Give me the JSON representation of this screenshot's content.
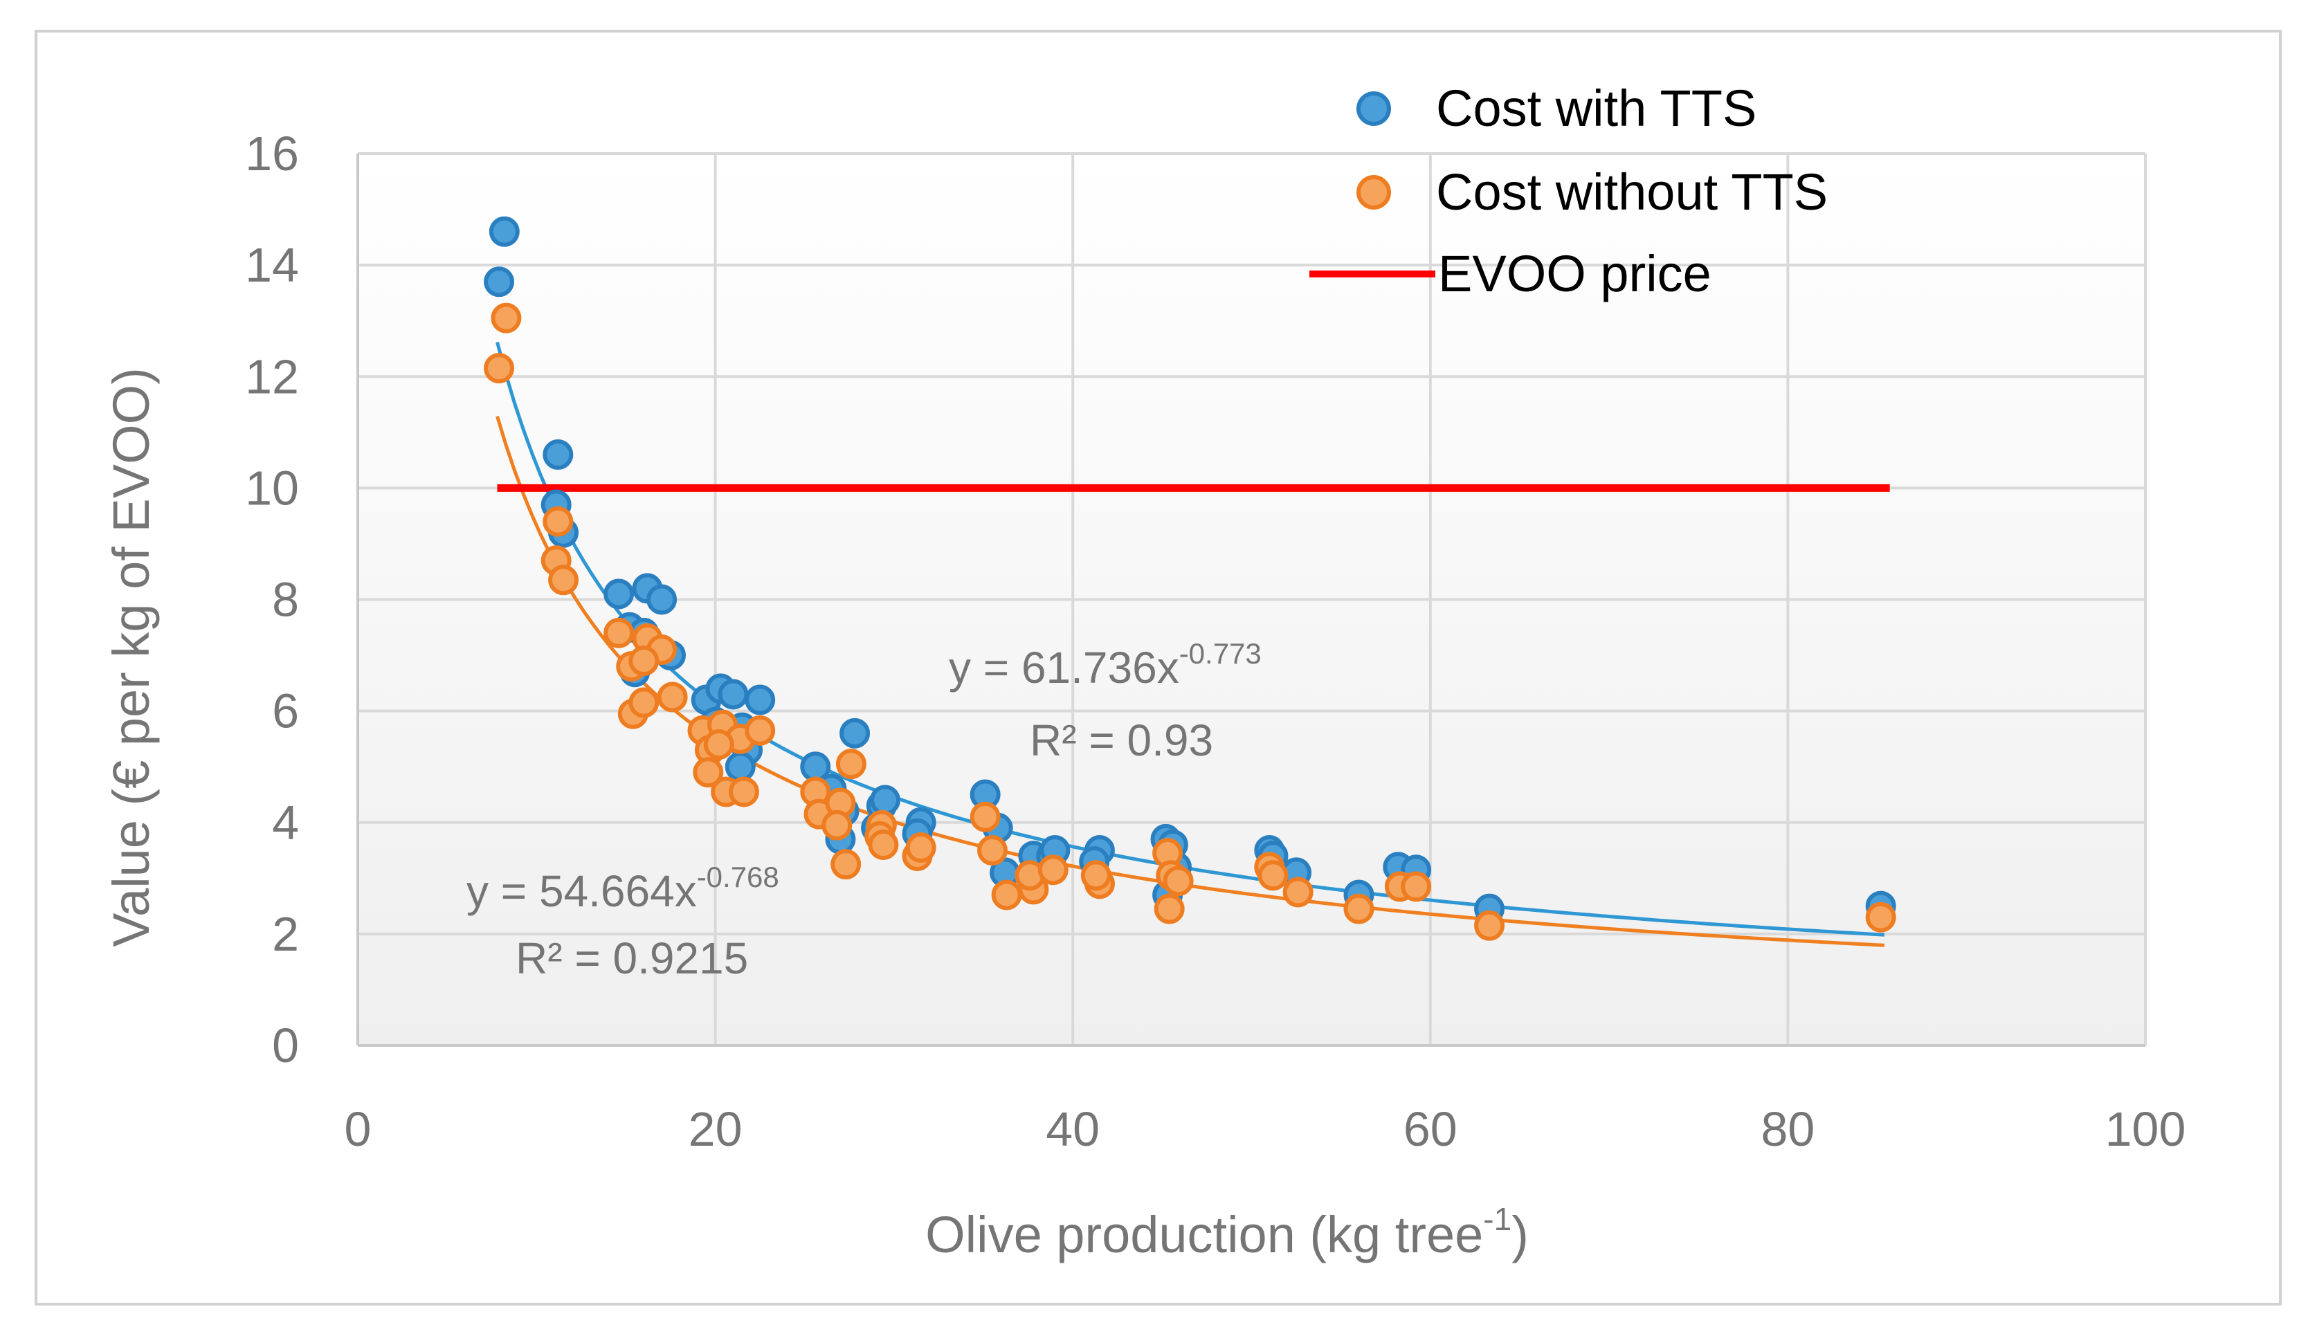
{
  "chart_data": {
    "type": "scatter",
    "title": "",
    "xlabel": "Olive production (kg tree",
    "xlabel_sup": "-1",
    "xlabel_suffix": ")",
    "ylabel": "Value (€ per kg of EVOO)",
    "xlim": [
      0,
      100
    ],
    "ylim": [
      0,
      16
    ],
    "xticks": [
      0,
      20,
      40,
      60,
      80,
      100
    ],
    "yticks": [
      0,
      2,
      4,
      6,
      8,
      10,
      12,
      14,
      16
    ],
    "grid": true,
    "legend_position": "top-right",
    "colors": {
      "with_tts": "#4a9fd8",
      "with_tts_edge": "#2a7fc0",
      "without_tts": "#f6a45c",
      "without_tts_edge": "#ee7d22",
      "trend_with": "#2e97d4",
      "trend_without": "#f07f20",
      "evoo": "#ff0000",
      "axis_text": "#757575",
      "grid": "#d9d9d9",
      "border": "#d0d0d0"
    },
    "series": [
      {
        "name": "Cost with TTS",
        "kind": "scatter",
        "points": [
          [
            8.2,
            14.6
          ],
          [
            7.9,
            13.7
          ],
          [
            11.2,
            10.6
          ],
          [
            11.1,
            9.7
          ],
          [
            11.5,
            9.2
          ],
          [
            14.6,
            8.1
          ],
          [
            16.2,
            8.2
          ],
          [
            17.0,
            8.0
          ],
          [
            15.2,
            7.5
          ],
          [
            16.0,
            7.4
          ],
          [
            17.5,
            7.0
          ],
          [
            15.5,
            6.7
          ],
          [
            19.5,
            6.2
          ],
          [
            20.3,
            6.4
          ],
          [
            21.0,
            6.3
          ],
          [
            22.5,
            6.2
          ],
          [
            20.0,
            5.8
          ],
          [
            21.5,
            5.7
          ],
          [
            21.8,
            5.3
          ],
          [
            21.4,
            5.0
          ],
          [
            25.6,
            5.0
          ],
          [
            26.5,
            4.6
          ],
          [
            27.8,
            5.6
          ],
          [
            27.2,
            4.2
          ],
          [
            29.3,
            4.3
          ],
          [
            29.5,
            4.4
          ],
          [
            29.0,
            3.9
          ],
          [
            31.5,
            4.0
          ],
          [
            31.3,
            3.8
          ],
          [
            27.0,
            3.7
          ],
          [
            35.1,
            4.5
          ],
          [
            35.8,
            3.9
          ],
          [
            36.2,
            3.1
          ],
          [
            37.8,
            3.4
          ],
          [
            38.8,
            3.4
          ],
          [
            39.0,
            3.5
          ],
          [
            41.5,
            3.5
          ],
          [
            41.2,
            3.3
          ],
          [
            45.2,
            3.7
          ],
          [
            45.6,
            3.6
          ],
          [
            45.8,
            3.2
          ],
          [
            45.3,
            2.7
          ],
          [
            51.0,
            3.5
          ],
          [
            51.2,
            3.4
          ],
          [
            52.5,
            3.1
          ],
          [
            56.0,
            2.7
          ],
          [
            58.2,
            3.2
          ],
          [
            59.2,
            3.15
          ],
          [
            63.3,
            2.45
          ],
          [
            85.2,
            2.5
          ]
        ]
      },
      {
        "name": "Cost without TTS",
        "kind": "scatter",
        "points": [
          [
            8.3,
            13.05
          ],
          [
            7.9,
            12.15
          ],
          [
            11.2,
            9.4
          ],
          [
            11.1,
            8.7
          ],
          [
            11.5,
            8.35
          ],
          [
            14.6,
            7.4
          ],
          [
            16.2,
            7.3
          ],
          [
            17.0,
            7.1
          ],
          [
            15.3,
            6.8
          ],
          [
            16.0,
            6.9
          ],
          [
            17.6,
            6.25
          ],
          [
            15.4,
            5.95
          ],
          [
            16.0,
            6.15
          ],
          [
            19.3,
            5.65
          ],
          [
            19.7,
            5.3
          ],
          [
            20.4,
            5.75
          ],
          [
            21.4,
            5.5
          ],
          [
            22.5,
            5.65
          ],
          [
            20.2,
            5.4
          ],
          [
            19.6,
            4.9
          ],
          [
            20.6,
            4.55
          ],
          [
            21.6,
            4.55
          ],
          [
            25.6,
            4.55
          ],
          [
            25.8,
            4.15
          ],
          [
            27.6,
            5.05
          ],
          [
            27.0,
            4.35
          ],
          [
            26.8,
            3.95
          ],
          [
            27.3,
            3.25
          ],
          [
            29.3,
            3.95
          ],
          [
            29.2,
            3.75
          ],
          [
            29.4,
            3.6
          ],
          [
            31.3,
            3.4
          ],
          [
            31.5,
            3.55
          ],
          [
            35.1,
            4.1
          ],
          [
            35.5,
            3.5
          ],
          [
            36.3,
            2.7
          ],
          [
            37.8,
            2.8
          ],
          [
            37.6,
            3.05
          ],
          [
            38.9,
            3.15
          ],
          [
            41.5,
            2.9
          ],
          [
            41.3,
            3.05
          ],
          [
            45.3,
            3.45
          ],
          [
            45.5,
            3.05
          ],
          [
            45.4,
            2.45
          ],
          [
            45.9,
            2.95
          ],
          [
            51.0,
            3.2
          ],
          [
            51.2,
            3.05
          ],
          [
            52.6,
            2.75
          ],
          [
            56.0,
            2.45
          ],
          [
            58.3,
            2.85
          ],
          [
            59.2,
            2.85
          ],
          [
            63.3,
            2.15
          ],
          [
            85.2,
            2.3
          ]
        ]
      },
      {
        "name": "EVOO price",
        "kind": "line",
        "points": [
          [
            7.8,
            10
          ],
          [
            85.7,
            10
          ]
        ]
      }
    ],
    "trendlines": [
      {
        "series": "Cost with TTS",
        "type": "power",
        "a": 61.736,
        "b": -0.773,
        "x_range": [
          7.8,
          85.4
        ]
      },
      {
        "series": "Cost without TTS",
        "type": "power",
        "a": 54.664,
        "b": -0.768,
        "x_range": [
          7.8,
          85.4
        ]
      }
    ],
    "annotations": [
      {
        "id": "eq-with",
        "equation_base": "y = 61.736x",
        "equation_exp": "-0.773",
        "r2": "R² = 0.93"
      },
      {
        "id": "eq-without",
        "equation_base": "y = 54.664x",
        "equation_exp": "-0.768",
        "r2": "R² = 0.9215"
      }
    ]
  }
}
